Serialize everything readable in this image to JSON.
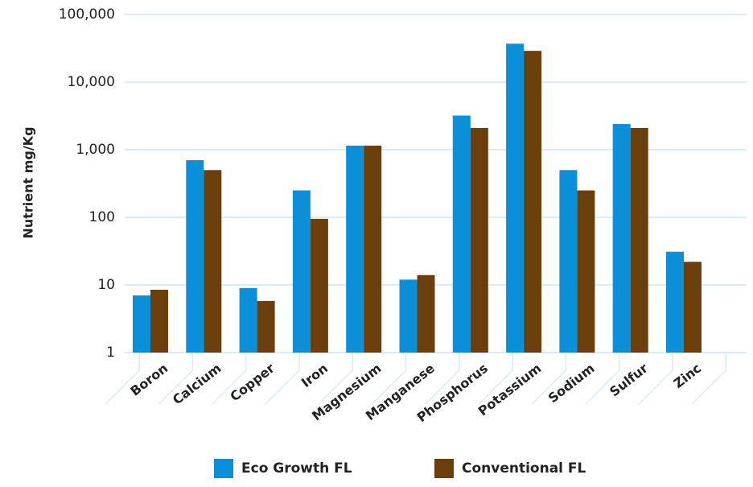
{
  "chart_data": {
    "type": "bar",
    "title": "",
    "xlabel": "",
    "ylabel": "Nutrient mg/Kg",
    "yscale": "log",
    "ylim": [
      1,
      100000
    ],
    "yticks": [
      "1",
      "10",
      "100",
      "1,000",
      "10,000",
      "100,000"
    ],
    "ytick_values": [
      1,
      10,
      100,
      1000,
      10000,
      100000
    ],
    "grid": true,
    "legend_position": "bottom",
    "categories": [
      "Boron",
      "Calcium",
      "Copper",
      "Iron",
      "Magnesium",
      "Manganese",
      "Phosphorus",
      "Potassium",
      "Sodium",
      "Sulfur",
      "Zinc"
    ],
    "series": [
      {
        "name": "Eco Growth FL",
        "color": "#0a8fd8",
        "values": [
          7,
          700,
          9,
          250,
          1150,
          12,
          3200,
          37000,
          500,
          2400,
          31
        ]
      },
      {
        "name": "Conventional FL",
        "color": "#6b3f0b",
        "values": [
          8.5,
          500,
          5.8,
          95,
          1150,
          14,
          2100,
          29000,
          250,
          2100,
          22
        ]
      }
    ],
    "colors": {
      "grid": "#d7ecf7",
      "text": "#222222"
    }
  }
}
